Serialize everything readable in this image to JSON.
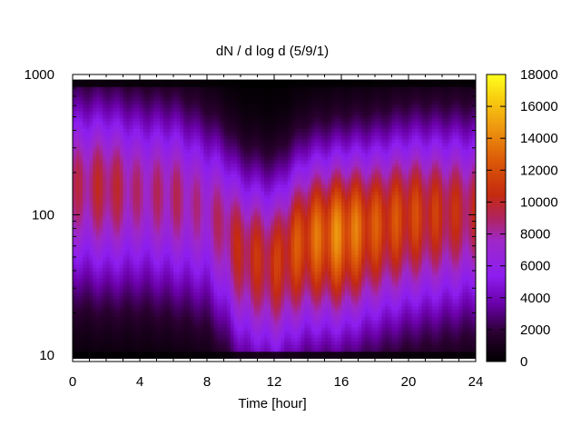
{
  "chart_data": {
    "type": "heatmap",
    "title": "dN / d log d (5/9/1)",
    "xlabel": "Time [hour]",
    "ylabel": "",
    "xlim": [
      0,
      24
    ],
    "ylim": [
      9.0,
      1000
    ],
    "y_scale": "log",
    "x_ticks": [
      0,
      4,
      8,
      12,
      16,
      20,
      24
    ],
    "x_tick_labels": [
      "0",
      "4",
      "8",
      "12",
      "16",
      "20",
      "24"
    ],
    "y_ticks": [
      10,
      100,
      1000
    ],
    "y_tick_labels": [
      "10",
      "100",
      "1000"
    ],
    "colorbar": {
      "range": [
        0,
        18000
      ],
      "ticks": [
        0,
        2000,
        4000,
        6000,
        8000,
        10000,
        12000,
        14000,
        16000,
        18000
      ],
      "tick_labels": [
        "0",
        "2000",
        "4000",
        "6000",
        "8000",
        "10000",
        "12000",
        "14000",
        "16000",
        "18000"
      ],
      "palette": "black-purple-red-orange-yellow"
    },
    "data_extent_y": [
      9.5,
      920
    ],
    "peak_diameter_profile": {
      "time_hour": [
        0,
        2,
        4,
        6,
        8,
        10,
        12,
        14,
        16,
        18,
        20,
        22,
        24
      ],
      "diameter": [
        165,
        160,
        150,
        140,
        110,
        55,
        45,
        70,
        75,
        85,
        100,
        105,
        110
      ],
      "max_value": [
        9500,
        10500,
        9000,
        9500,
        8500,
        11000,
        11500,
        13500,
        15000,
        13000,
        12500,
        11500,
        10500
      ]
    }
  }
}
